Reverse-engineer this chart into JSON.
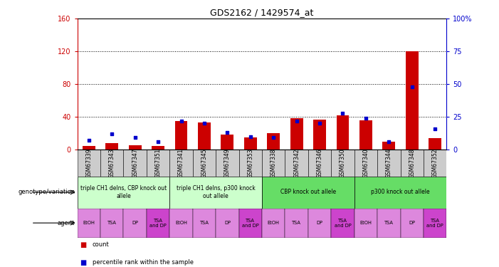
{
  "title": "GDS2162 / 1429574_at",
  "samples": [
    "GSM67339",
    "GSM67343",
    "GSM67347",
    "GSM67351",
    "GSM67341",
    "GSM67345",
    "GSM67349",
    "GSM67353",
    "GSM67338",
    "GSM67342",
    "GSM67346",
    "GSM67350",
    "GSM67340",
    "GSM67344",
    "GSM67348",
    "GSM67352"
  ],
  "count": [
    4,
    8,
    5,
    4,
    35,
    33,
    18,
    15,
    20,
    38,
    37,
    42,
    36,
    10,
    120,
    14
  ],
  "percentile": [
    7,
    12,
    9,
    6,
    22,
    20,
    13,
    10,
    9,
    22,
    20,
    28,
    24,
    6,
    48,
    16
  ],
  "left_ylim": [
    0,
    160
  ],
  "right_ylim": [
    0,
    100
  ],
  "left_yticks": [
    0,
    40,
    80,
    120,
    160
  ],
  "right_yticks": [
    0,
    25,
    50,
    75,
    100
  ],
  "right_yticklabels": [
    "0",
    "25",
    "50",
    "75",
    "100%"
  ],
  "bar_color": "#cc0000",
  "dot_color": "#0000cc",
  "genotype_groups": [
    {
      "label": "triple CH1 delns, CBP knock out\nallele",
      "start": 0,
      "end": 4,
      "color": "#ccffcc"
    },
    {
      "label": "triple CH1 delns, p300 knock\nout allele",
      "start": 4,
      "end": 8,
      "color": "#ccffcc"
    },
    {
      "label": "CBP knock out allele",
      "start": 8,
      "end": 12,
      "color": "#66dd66"
    },
    {
      "label": "p300 knock out allele",
      "start": 12,
      "end": 16,
      "color": "#66dd66"
    }
  ],
  "agent_labels": [
    "EtOH",
    "TSA",
    "DP",
    "TSA\nand DP",
    "EtOH",
    "TSA",
    "DP",
    "TSA\nand DP",
    "EtOH",
    "TSA",
    "DP",
    "TSA\nand DP",
    "EtOH",
    "TSA",
    "DP",
    "TSA\nand DP"
  ],
  "agent_base_color": "#dd88dd",
  "agent_dark_color": "#cc44cc",
  "background_color": "#ffffff",
  "axis_left_color": "#cc0000",
  "axis_right_color": "#0000cc",
  "grid_yticks": [
    40,
    80,
    120
  ],
  "xticklabel_bg": "#cccccc",
  "label_left_genotype": "genotype/variation",
  "label_left_agent": "agent",
  "legend_count": "count",
  "legend_pct": "percentile rank within the sample"
}
